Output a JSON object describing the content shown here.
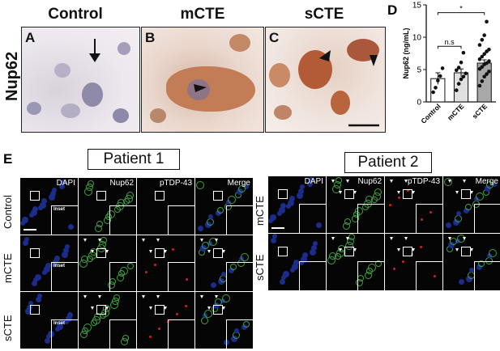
{
  "ihc": {
    "row_label": "Nup62",
    "columns": [
      "Control",
      "mCTE",
      "sCTE"
    ],
    "panels": [
      "A",
      "B",
      "C"
    ]
  },
  "panel_d_letter": "D",
  "section_e_letter": "E",
  "patients": [
    "Patient 1",
    "Patient 2"
  ],
  "channels": [
    "DAPI",
    "Nup62",
    "pTDP-43",
    "Merge"
  ],
  "patient1_rows": [
    "Control",
    "mCTE",
    "sCTE"
  ],
  "patient2_rows": [
    "mCTE",
    "sCTE"
  ],
  "inset_label": "Inset",
  "colors": {
    "dapi": "#1b2c8a",
    "nup62": "#3fa23f",
    "ptdp43": "#d12020",
    "ihc_brown": "#b5673f",
    "ihc_blue": "#6b6a9c"
  },
  "chart_data": {
    "type": "bar",
    "ylabel": "Nup62 (ng/mL)",
    "categories": [
      "Control",
      "mCTE",
      "sCTE"
    ],
    "values": [
      3.6,
      4.5,
      6.0
    ],
    "errors": [
      0.9,
      0.6,
      0.5
    ],
    "ylim": [
      0,
      15
    ],
    "yticks": [
      0,
      5,
      10,
      15
    ],
    "bar_colors": [
      "#ffffff",
      "#e0e0e0",
      "#a8a8a8"
    ],
    "points": [
      [
        1.5,
        2.2,
        3.3,
        4.0,
        5.2
      ],
      [
        1.8,
        2.8,
        3.5,
        3.9,
        4.4,
        4.9,
        5.3,
        6.1,
        7.6
      ],
      [
        2.5,
        3.2,
        3.9,
        4.3,
        4.7,
        5.1,
        5.4,
        5.8,
        6.0,
        6.3,
        6.6,
        7.0,
        7.4,
        7.8,
        8.1,
        8.8,
        9.6,
        10.3,
        12.4
      ]
    ],
    "significance": [
      {
        "from": 0,
        "to": 1,
        "label": "n.s"
      },
      {
        "from": 0,
        "to": 2,
        "label": "*"
      }
    ]
  }
}
